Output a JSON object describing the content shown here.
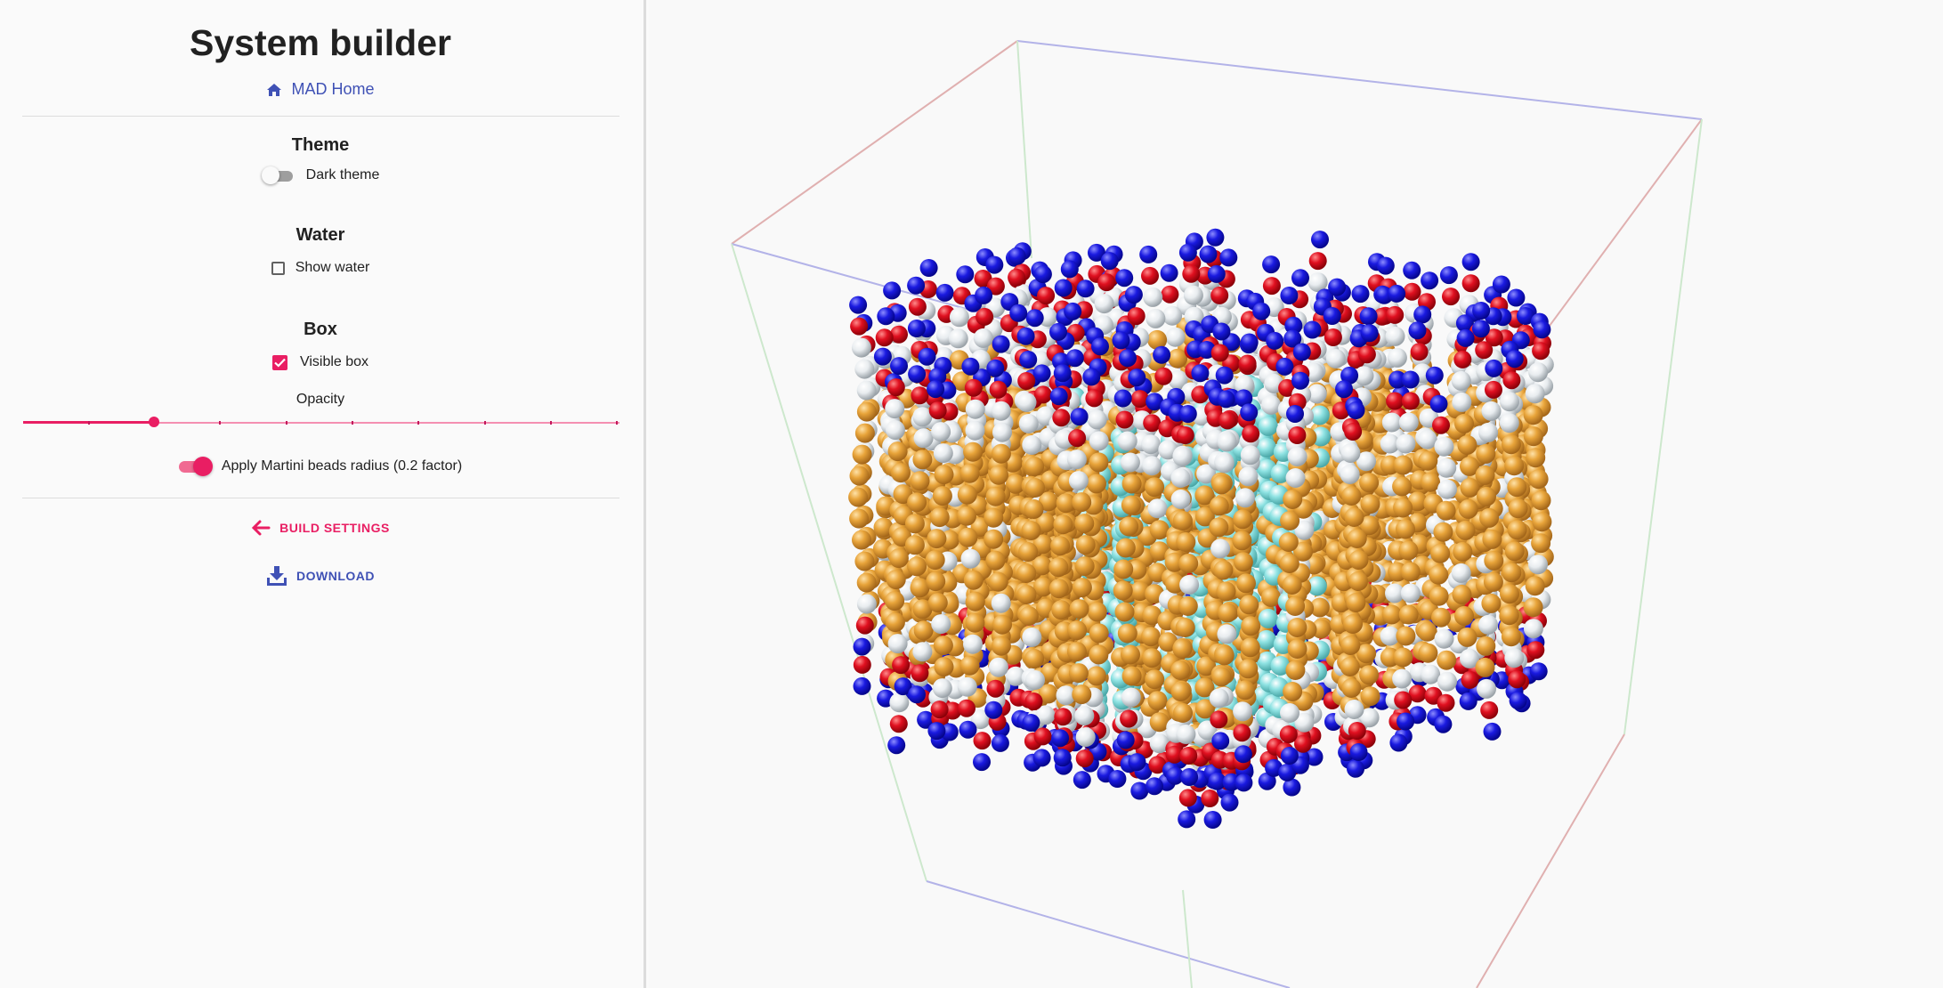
{
  "sidebar": {
    "title": "System builder",
    "home_link": "MAD Home",
    "theme": {
      "heading": "Theme",
      "dark_theme_label": "Dark theme",
      "dark_theme_on": false
    },
    "water": {
      "heading": "Water",
      "show_water_label": "Show water",
      "show_water_checked": false
    },
    "box": {
      "heading": "Box",
      "visible_box_label": "Visible box",
      "visible_box_checked": true,
      "opacity_label": "Opacity",
      "opacity_value": 0.2,
      "martini_label": "Apply Martini beads radius (0.2 factor)",
      "martini_on": true
    },
    "actions": {
      "build_settings": "BUILD SETTINGS",
      "download": "DOWNLOAD"
    }
  },
  "colors": {
    "accent": "#e91e63",
    "link": "#3f51b5",
    "bead_blue": "#1a1ae0",
    "bead_red": "#e01020",
    "bead_white": "#e8ecef",
    "bead_orange": "#e8a43a",
    "bead_cyan": "#8fe3e3"
  },
  "icons": {
    "home": "home-icon",
    "back": "arrow-left-icon",
    "download": "download-icon",
    "check": "check-icon"
  }
}
